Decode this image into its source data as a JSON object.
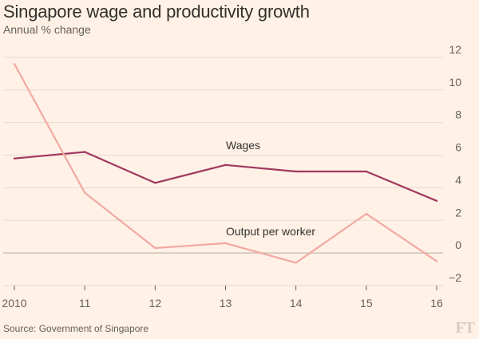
{
  "header": {
    "title": "Singapore wage and productivity growth",
    "subtitle": "Annual % change"
  },
  "footer": {
    "source": "Source: Government of Singapore",
    "logo": "FT"
  },
  "colors": {
    "background": "#fff1e5",
    "grid": "#e6d9ce",
    "wages": "#a0385f",
    "output": "#f2a9a2"
  },
  "chart_data": {
    "type": "line",
    "title": "Singapore wage and productivity growth",
    "subtitle": "Annual % change",
    "xlabel": "",
    "ylabel": "",
    "categories": [
      "2010",
      "11",
      "12",
      "13",
      "14",
      "15",
      "16"
    ],
    "ylim": [
      -2,
      12
    ],
    "yticks": [
      12,
      10,
      8,
      6,
      4,
      2,
      0,
      -2
    ],
    "grid": true,
    "y_axis_side": "right",
    "series": [
      {
        "name": "Wages",
        "values": [
          5.8,
          6.2,
          4.3,
          5.4,
          5.0,
          5.0,
          3.2
        ]
      },
      {
        "name": "Output per worker",
        "values": [
          11.6,
          3.7,
          0.3,
          0.6,
          -0.6,
          2.4,
          -0.5
        ]
      }
    ]
  }
}
